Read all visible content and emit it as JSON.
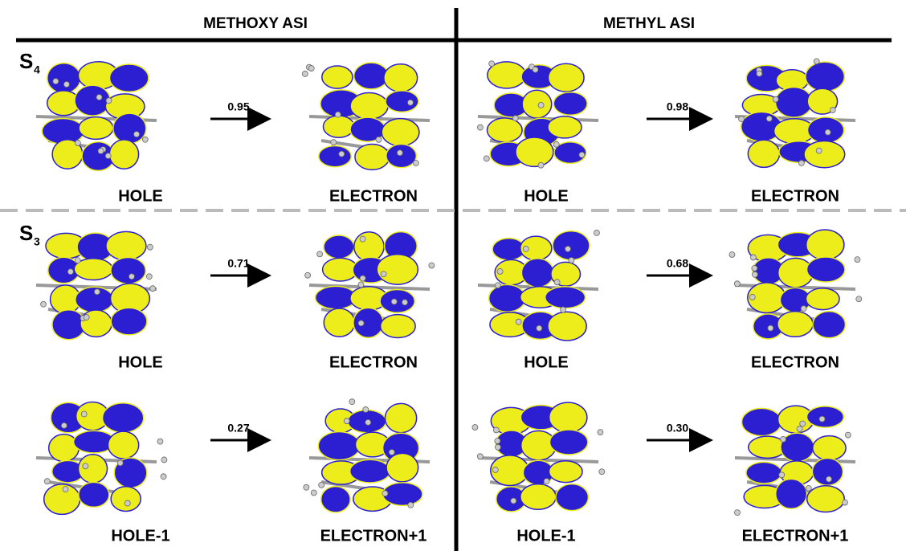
{
  "header": {
    "left": "METHOXY ASI",
    "right": "METHYL ASI"
  },
  "rows": [
    {
      "state": {
        "symbol": "S",
        "index": "4"
      },
      "panels": [
        {
          "from": "HOLE",
          "to": "ELECTRON",
          "weight": "0.95"
        },
        {
          "from": "HOLE",
          "to": "ELECTRON",
          "weight": "0.98"
        }
      ]
    },
    {
      "state": {
        "symbol": "S",
        "index": "3"
      },
      "panels": [
        {
          "from": "HOLE",
          "to": "ELECTRON",
          "weight": "0.71"
        },
        {
          "from": "HOLE",
          "to": "ELECTRON",
          "weight": "0.68"
        }
      ]
    },
    {
      "panels": [
        {
          "from": "HOLE-1",
          "to": "ELECTRON+1",
          "weight": "0.27"
        },
        {
          "from": "HOLE-1",
          "to": "ELECTRON+1",
          "weight": "0.30"
        }
      ]
    }
  ]
}
